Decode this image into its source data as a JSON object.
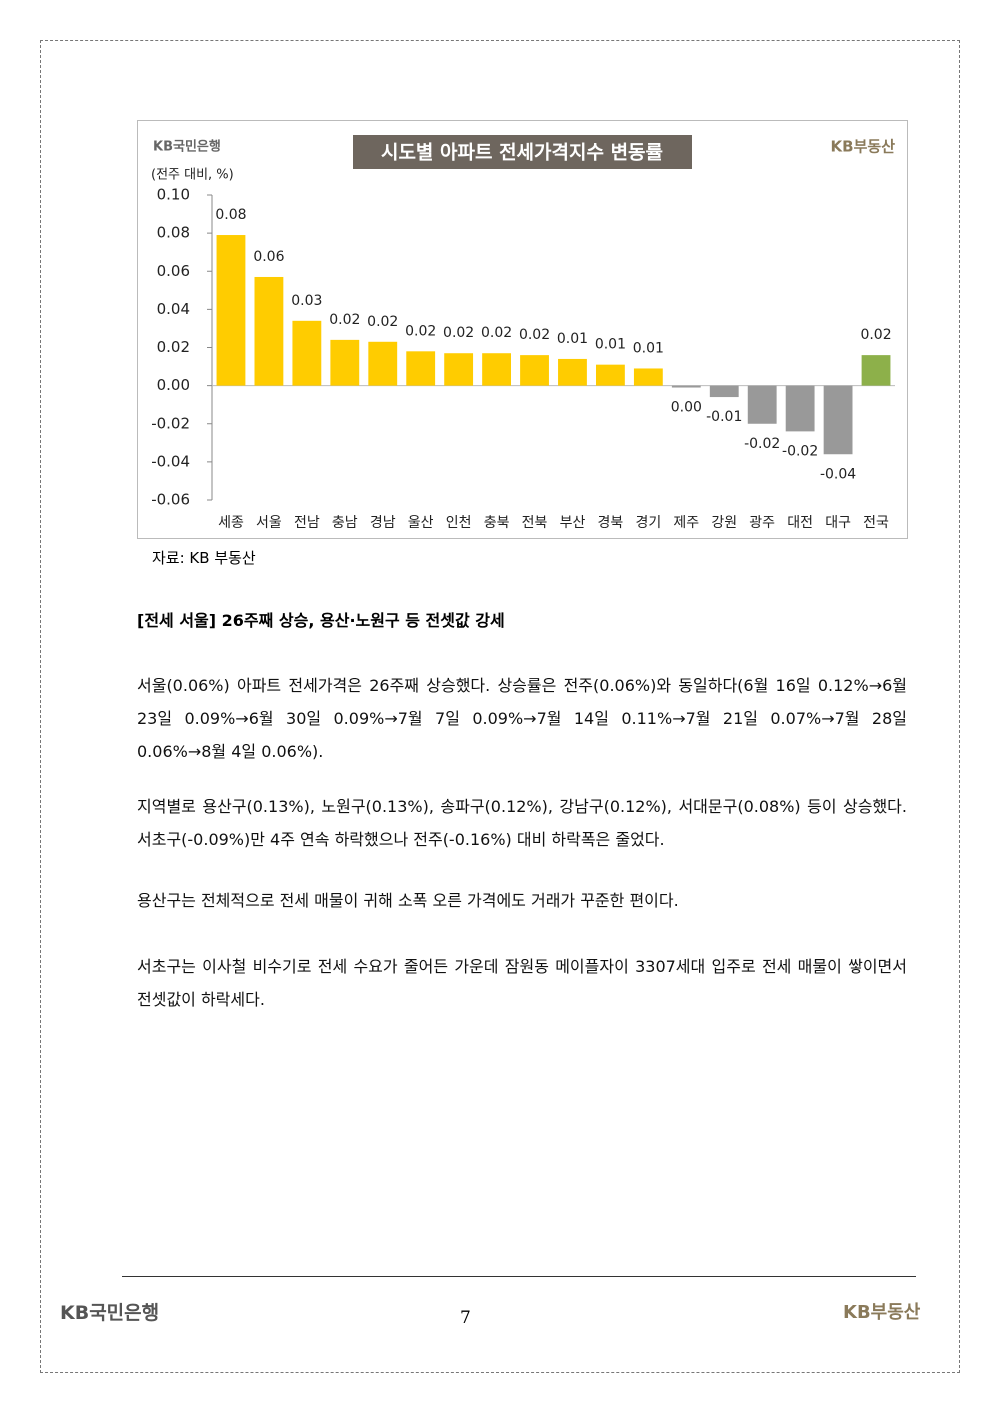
{
  "chart_data": {
    "type": "bar",
    "title": "시도별 아파트 전세가격지수 변동률",
    "logo_left": "KB국민은행",
    "logo_right": "KB부동산",
    "y_label": "(전주 대비, %)",
    "categories": [
      "세종",
      "서울",
      "전남",
      "충남",
      "경남",
      "울산",
      "인천",
      "충북",
      "전북",
      "부산",
      "경북",
      "경기",
      "제주",
      "강원",
      "광주",
      "대전",
      "대구",
      "전국"
    ],
    "values": [
      0.079,
      0.057,
      0.034,
      0.024,
      0.023,
      0.018,
      0.017,
      0.017,
      0.016,
      0.014,
      0.011,
      0.009,
      -0.001,
      -0.006,
      -0.02,
      -0.024,
      -0.036,
      0.016
    ],
    "value_labels": [
      "0.08",
      "0.06",
      "0.03",
      "0.02",
      "0.02",
      "0.02",
      "0.02",
      "0.02",
      "0.02",
      "0.01",
      "0.01",
      "0.01",
      "0.00",
      "-0.01",
      "-0.02",
      "-0.02",
      "-0.04",
      "0.02"
    ],
    "colors": [
      "#ffcc00",
      "#ffcc00",
      "#ffcc00",
      "#ffcc00",
      "#ffcc00",
      "#ffcc00",
      "#ffcc00",
      "#ffcc00",
      "#ffcc00",
      "#ffcc00",
      "#ffcc00",
      "#ffcc00",
      "#999999",
      "#999999",
      "#999999",
      "#999999",
      "#999999",
      "#8db04a"
    ],
    "ylim": [
      -0.06,
      0.1
    ],
    "yticks": [
      -0.06,
      -0.04,
      -0.02,
      {
        "value": 0,
        "label": "0.00"
      },
      0.02,
      0.04,
      0.06,
      0.08,
      {
        "value": 0.1,
        "label": "0.10"
      }
    ],
    "source": "자료: KB 부동산"
  },
  "document": {
    "heading": "[전세 서울] 26주째 상승, 용산·노원구 등 전셋값 강세",
    "paragraphs": [
      "서울(0.06%) 아파트 전세가격은 26주째 상승했다. 상승률은 전주(0.06%)와 동일하다(6월 16일 0.12%→6월 23일 0.09%→6월 30일 0.09%→7월 7일 0.09%→7월 14일 0.11%→7월 21일 0.07%→7월 28일 0.06%→8월 4일 0.06%).",
      "지역별로 용산구(0.13%), 노원구(0.13%), 송파구(0.12%), 강남구(0.12%), 서대문구(0.08%) 등이 상승했다. 서초구(-0.09%)만 4주 연속 하락했으나 전주(-0.16%) 대비 하락폭은 줄었다.",
      "용산구는 전체적으로 전세 매물이 귀해 소폭 오른 가격에도 거래가 꾸준한 편이다.",
      "서초구는 이사철 비수기로 전세 수요가 줄어든 가운데 잠원동 메이플자이 3307세대 입주로 전세 매물이 쌓이면서 전셋값이 하락세다."
    ],
    "footer_left": "KB국민은행",
    "footer_right": "KB부동산",
    "page_number": "7"
  }
}
